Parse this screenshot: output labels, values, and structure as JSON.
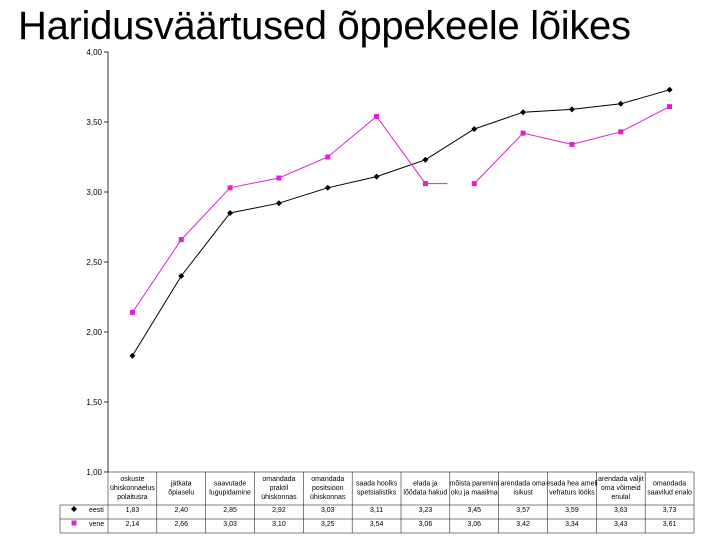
{
  "title": "Haridusväärtused õppekeele lõikes",
  "chart_data": {
    "type": "line",
    "title": "Haridusväärtused õppekeele lõikes",
    "ylim": [
      1.0,
      4.0
    ],
    "yticks": [
      "1,00",
      "1,50",
      "2,00",
      "2,50",
      "3,00",
      "3,50",
      "4,00"
    ],
    "grid": false,
    "categories": [
      "oskuste ühiskonnaelus polaitusra",
      "jätkata õpiaselu",
      "saavutade lugupidamine",
      "omandada praktil ühiskonnas",
      "omandada positsioon ühiskonnas",
      "saada hoolks spetsialistiks",
      "elada ja lõõdata hakud",
      "mõista paremini oku ja maailma",
      "arendada oma isikust",
      "esada hea ameli vefraturs lööks",
      "arendada valjit oma võimeid enulal",
      "omandada saavilud enalo"
    ],
    "series": [
      {
        "name": "eesti",
        "color": "#000000",
        "marker": "diamond",
        "values": [
          1.83,
          2.4,
          2.85,
          2.92,
          3.03,
          3.11,
          3.23,
          3.45,
          3.57,
          3.59,
          3.63,
          3.73
        ],
        "labels": [
          "1,83",
          "2,40",
          "2,85",
          "2,92",
          "3,03",
          "3,11",
          "3,23",
          "3,45",
          "3,57",
          "3,59",
          "3,63",
          "3,73"
        ]
      },
      {
        "name": "vene",
        "color": "#e020d0",
        "marker": "square",
        "values": [
          2.14,
          2.66,
          3.03,
          3.1,
          3.25,
          3.54,
          3.06,
          3.06,
          3.42,
          3.34,
          3.43,
          3.61
        ],
        "labels": [
          "2,14",
          "2,66",
          "3,03",
          "3,10",
          "3,25",
          "3,54",
          "3,06",
          "3,06",
          "3,42",
          "3,34",
          "3,43",
          "3,61"
        ],
        "line_break_after_index": 6
      }
    ]
  }
}
